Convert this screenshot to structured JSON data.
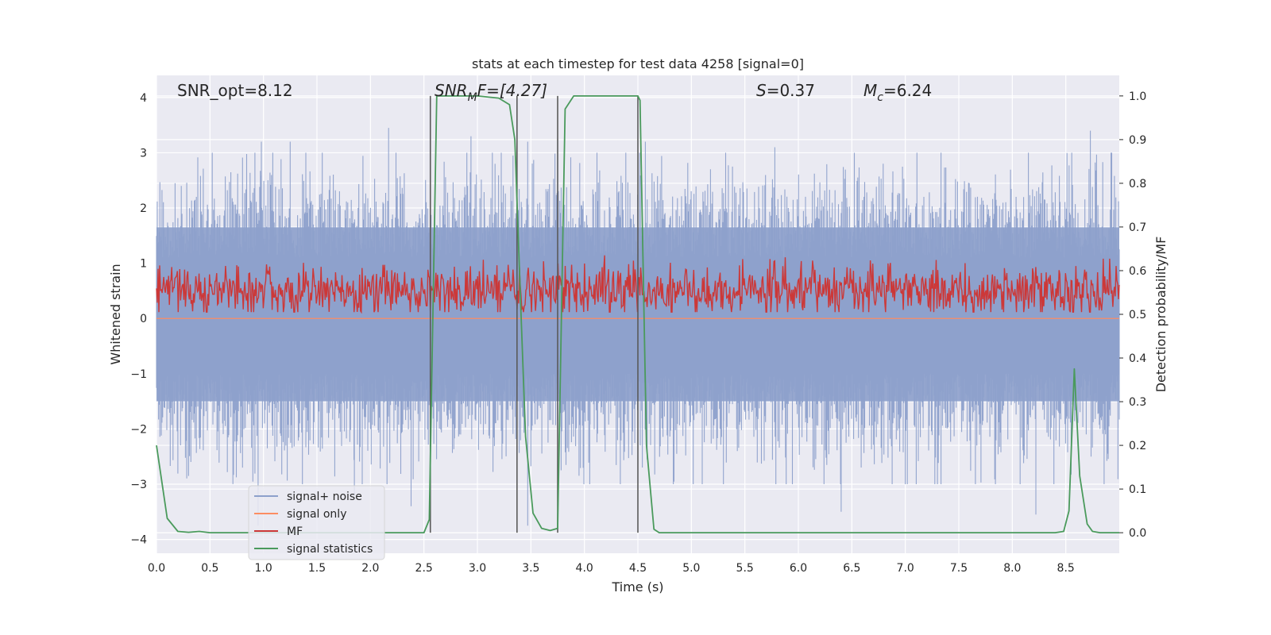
{
  "chart_data": {
    "type": "line",
    "title": "stats at each timestep for test data 4258 [signal=0]",
    "xlabel": "Time (s)",
    "ylabel": "Whitened strain",
    "ylabel_right": "Detection probability/MF",
    "xlim": [
      0,
      9.0
    ],
    "ylim": [
      -4.25,
      4.4
    ],
    "ylim_right": [
      -0.047,
      1.047
    ],
    "x_ticks": [
      0,
      0.5,
      1.0,
      1.5,
      2.0,
      2.5,
      3.0,
      3.5,
      4.0,
      4.5,
      5.0,
      5.5,
      6.0,
      6.5,
      7.0,
      7.5,
      8.0,
      8.5
    ],
    "x_tick_labels": [
      "0.0",
      "0.5",
      "1.0",
      "1.5",
      "2.0",
      "2.5",
      "3.0",
      "3.5",
      "4.0",
      "4.5",
      "5.0",
      "5.5",
      "6.0",
      "6.5",
      "7.0",
      "7.5",
      "8.0",
      "8.5"
    ],
    "y_ticks": [
      -4,
      -3,
      -2,
      -1,
      0,
      1,
      2,
      3,
      4
    ],
    "y_tick_labels": [
      "−4",
      "−3",
      "−2",
      "−1",
      "0",
      "1",
      "2",
      "3",
      "4"
    ],
    "y_right_ticks": [
      0.0,
      0.1,
      0.2,
      0.3,
      0.4,
      0.5,
      0.6,
      0.7,
      0.8,
      0.9,
      1.0
    ],
    "y_right_tick_labels": [
      "0.0",
      "0.1",
      "0.2",
      "0.3",
      "0.4",
      "0.5",
      "0.6",
      "0.7",
      "0.8",
      "0.9",
      "1.0"
    ],
    "grid": true,
    "annotations": {
      "snr_opt": "SNR_opt=8.12",
      "snr_mf_main": "SNR",
      "snr_mf_sub": "M",
      "snr_mf_rest": "F=[4.27]",
      "s_main": "S",
      "s_rest": "=0.37",
      "mc_main": "M",
      "mc_sub": "c",
      "mc_rest": "=6.24"
    },
    "legend": {
      "position": "lower-left",
      "entries": [
        "signal+ noise",
        "signal only",
        "MF",
        "signal statistics"
      ]
    },
    "series": [
      {
        "name": "signal+ noise",
        "color": "#8da0cb",
        "axis": "left",
        "style": "noise",
        "x_range": [
          0,
          9.0
        ],
        "band_p99": [
          -1.5,
          1.65
        ],
        "peaks": [
          {
            "x": 0.98,
            "y": 3.2
          },
          {
            "x": 1.25,
            "y": 3.2
          },
          {
            "x": 2.17,
            "y": 3.45
          },
          {
            "x": 2.94,
            "y": 3.3
          },
          {
            "x": 3.75,
            "y": 3.25
          },
          {
            "x": 4.57,
            "y": 3.2
          },
          {
            "x": 5.78,
            "y": 3.1
          },
          {
            "x": 8.73,
            "y": 3.4
          },
          {
            "x": 3.47,
            "y": 3.2
          },
          {
            "x": 1.55,
            "y": 3.0
          }
        ],
        "troughs": [
          {
            "x": 0.95,
            "y": -3.75
          },
          {
            "x": 1.85,
            "y": -3.2
          },
          {
            "x": 2.38,
            "y": -3.4
          },
          {
            "x": 3.47,
            "y": -3.75
          },
          {
            "x": 6.4,
            "y": -3.5
          },
          {
            "x": 8.22,
            "y": -3.55
          },
          {
            "x": 0.3,
            "y": -2.85
          },
          {
            "x": 5.3,
            "y": -3.0
          },
          {
            "x": 7.3,
            "y": -3.0
          },
          {
            "x": 4.05,
            "y": -3.0
          }
        ]
      },
      {
        "name": "signal only",
        "color": "#fc8d62",
        "axis": "left",
        "x": [
          0,
          9.0
        ],
        "y": [
          0,
          0
        ]
      },
      {
        "name": "MF",
        "color": "#cc3838",
        "axis": "right",
        "style": "noise",
        "x_range": [
          0,
          9.0
        ],
        "band": [
          0.505,
          0.635
        ],
        "center": 0.555
      },
      {
        "name": "signal statistics",
        "color": "#4a9a5c",
        "axis": "right",
        "x": [
          0,
          0.1,
          0.2,
          0.3,
          0.4,
          0.5,
          1.0,
          1.5,
          2.0,
          2.4,
          2.5,
          2.55,
          2.62,
          2.75,
          3.0,
          3.2,
          3.3,
          3.35,
          3.4,
          3.45,
          3.52,
          3.6,
          3.68,
          3.75,
          3.82,
          3.9,
          4.0,
          4.5,
          4.52,
          4.58,
          4.65,
          4.7,
          5.0,
          6.0,
          7.0,
          8.0,
          8.4,
          8.48,
          8.53,
          8.58,
          8.63,
          8.7,
          8.75,
          8.82,
          9.0
        ],
        "y": [
          0.2,
          0.033,
          0.003,
          0.001,
          0.003,
          0.0,
          0.0,
          0.0,
          0.0,
          0.0,
          0.0,
          0.03,
          1.0,
          1.0,
          1.0,
          0.995,
          0.98,
          0.9,
          0.55,
          0.22,
          0.045,
          0.01,
          0.005,
          0.01,
          0.97,
          1.0,
          1.0,
          1.0,
          0.99,
          0.2,
          0.008,
          0.0,
          0.0,
          0.0,
          0.0,
          0.0,
          0.0,
          0.003,
          0.05,
          0.375,
          0.13,
          0.02,
          0.003,
          0.0,
          0.0
        ]
      },
      {
        "name": "segment markers",
        "color": "#5a5a5a",
        "axis": "right",
        "x_values": [
          2.56,
          3.37,
          3.75,
          4.5
        ],
        "y_range": [
          0.0,
          1.0
        ]
      }
    ]
  }
}
